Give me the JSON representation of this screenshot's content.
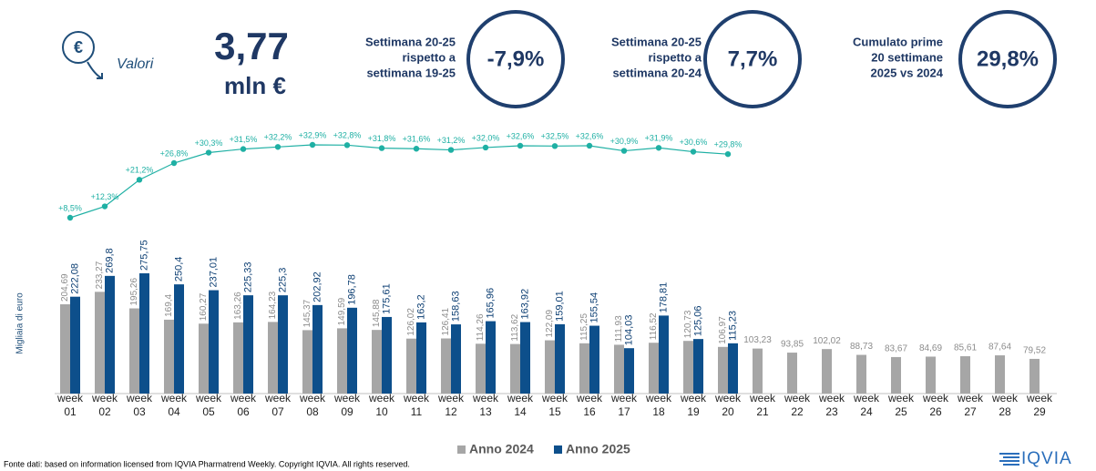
{
  "header": {
    "label": "Valori",
    "total": "3,77",
    "unit": "mln €"
  },
  "kpis": [
    {
      "lines": [
        "Settimana 20-25",
        "rispetto a",
        "settimana 19-25"
      ],
      "value": "-7,9%"
    },
    {
      "lines": [
        "Settimana 20-25",
        "rispetto a",
        "settimana 20-24"
      ],
      "value": "7,7%"
    },
    {
      "lines": [
        "Cumulato prime",
        "20 settimane",
        "2025 vs 2024"
      ],
      "value": "29,8%"
    }
  ],
  "chart_data": {
    "type": "bar",
    "y_label": "Migliaia di euro",
    "categories": [
      "week 01",
      "week 02",
      "week 03",
      "week 04",
      "week 05",
      "week 06",
      "week 07",
      "week 08",
      "week 09",
      "week 10",
      "week 11",
      "week 12",
      "week 13",
      "week 14",
      "week 15",
      "week 16",
      "week 17",
      "week 18",
      "week 19",
      "week 20",
      "week 21",
      "week 22",
      "week 23",
      "week 24",
      "week 25",
      "week 26",
      "week 27",
      "week 28",
      "week 29"
    ],
    "series": [
      {
        "name": "Anno 2024",
        "color": "#a6a6a6",
        "values": [
          204.69,
          233.27,
          195.26,
          169.4,
          160.27,
          163.26,
          164.23,
          145.37,
          149.59,
          145.88,
          126.02,
          126.41,
          114.26,
          113.62,
          122.09,
          115.25,
          111.93,
          116.52,
          120.73,
          106.97,
          103.23,
          93.85,
          102.02,
          88.73,
          83.67,
          84.69,
          85.61,
          87.64,
          79.52
        ],
        "value_labels": [
          "204,69",
          "233,27",
          "195,26",
          "169,4",
          "160,27",
          "163,26",
          "164,23",
          "145,37",
          "149,59",
          "145,88",
          "126,02",
          "126,41",
          "114,26",
          "113,62",
          "122,09",
          "115,25",
          "111,93",
          "116,52",
          "120,73",
          "106,97",
          "103,23",
          "93,85",
          "102,02",
          "88,73",
          "83,67",
          "84,69",
          "85,61",
          "87,64",
          "79,52"
        ]
      },
      {
        "name": "Anno 2025",
        "color": "#0d4f8b",
        "values": [
          222.08,
          269.8,
          275.75,
          250.4,
          237.01,
          225.33,
          225.3,
          202.92,
          196.78,
          175.61,
          163.2,
          158.63,
          165.96,
          163.92,
          159.01,
          155.54,
          104.03,
          178.81,
          125.06,
          115.23,
          null,
          null,
          null,
          null,
          null,
          null,
          null,
          null,
          null
        ],
        "value_labels": [
          "222,08",
          "269,8",
          "275,75",
          "250,4",
          "237,01",
          "225,33",
          "225,3",
          "202,92",
          "196,78",
          "175,61",
          "163,2",
          "158,63",
          "165,96",
          "163,92",
          "159,01",
          "155,54",
          "104,03",
          "178,81",
          "125,06",
          "115,23",
          null,
          null,
          null,
          null,
          null,
          null,
          null,
          null,
          null
        ]
      }
    ],
    "line": {
      "color": "#1fb0a4",
      "values": [
        8.5,
        12.3,
        21.2,
        26.8,
        30.3,
        31.5,
        32.2,
        32.9,
        32.8,
        31.8,
        31.6,
        31.2,
        32.0,
        32.6,
        32.5,
        32.6,
        30.9,
        31.9,
        30.6,
        29.8,
        null,
        null,
        null,
        null,
        null,
        null,
        null,
        null,
        null
      ],
      "value_labels": [
        "+8,5%",
        "+12,3%",
        "+21,2%",
        "+26,8%",
        "+30,3%",
        "+31,5%",
        "+32,2%",
        "+32,9%",
        "+32,8%",
        "+31,8%",
        "+31,6%",
        "+31,2%",
        "+32,0%",
        "+32,6%",
        "+32,5%",
        "+32,6%",
        "+30,9%",
        "+31,9%",
        "+30,6%",
        "+29,8%",
        null,
        null,
        null,
        null,
        null,
        null,
        null,
        null,
        null
      ]
    },
    "legend": "bottom"
  },
  "footer": {
    "source": "Fonte dati: based on information licensed from IQVIA Pharmatrend Weekly. Copyright IQVIA. All rights reserved.",
    "logo": "IQVIA"
  }
}
